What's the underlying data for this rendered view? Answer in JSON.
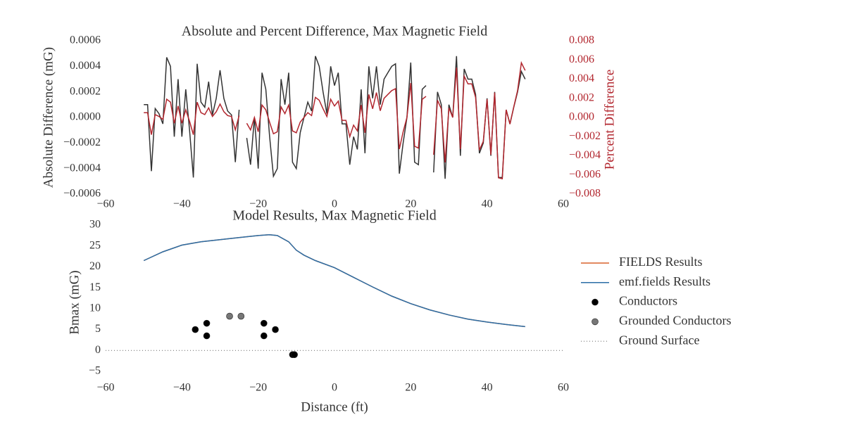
{
  "chart_data": [
    {
      "type": "line",
      "title": "Absolute and Percent Difference, Max Magnetic Field",
      "ylabel": "Absolute Difference (mG)",
      "y2label": "Percent Difference",
      "y2color": "#b2262e",
      "xlim": [
        -60,
        60
      ],
      "xticks": [
        {
          "value": -60,
          "label": "−60"
        },
        {
          "value": -40,
          "label": "−40"
        },
        {
          "value": -20,
          "label": "−20"
        },
        0,
        20,
        40,
        60
      ],
      "ylim": [
        -0.0006,
        0.0006
      ],
      "yticks": [
        {
          "value": -0.0006,
          "label": "−0.0006"
        },
        {
          "value": -0.0004,
          "label": "−0.0004"
        },
        {
          "value": -0.0002,
          "label": "−0.0002"
        },
        {
          "value": 0,
          "label": "0.0000"
        },
        {
          "value": 0.0002,
          "label": "0.0002"
        },
        {
          "value": 0.0004,
          "label": "0.0004"
        },
        {
          "value": 0.0006,
          "label": "0.0006"
        }
      ],
      "y2lim": [
        -0.008,
        0.008
      ],
      "y2ticks": [
        {
          "value": -0.008,
          "label": "−0.008"
        },
        {
          "value": -0.006,
          "label": "−0.006"
        },
        {
          "value": -0.004,
          "label": "−0.004"
        },
        {
          "value": -0.002,
          "label": "−0.002"
        },
        {
          "value": 0,
          "label": "0.000"
        },
        0.002,
        0.004,
        0.006,
        0.008
      ],
      "x": [
        -50,
        -49,
        -48,
        -47,
        -46,
        -45,
        -44,
        -43,
        -42,
        -41,
        -40,
        -39,
        -38,
        -37,
        -36,
        -35,
        -34,
        -33,
        -32,
        -31,
        -30,
        -29,
        -28,
        -27,
        -26,
        -25,
        -24,
        -23,
        -22,
        -21,
        -20,
        -19,
        -18,
        -17,
        -16,
        -15,
        -14,
        -13,
        -12,
        -11,
        -10,
        -9,
        -8,
        -7,
        -6,
        -5,
        -4,
        -3,
        -2,
        -1,
        0,
        1,
        2,
        3,
        4,
        5,
        6,
        7,
        8,
        9,
        10,
        11,
        12,
        13,
        14,
        15,
        16,
        17,
        18,
        19,
        20,
        21,
        22,
        23,
        24,
        25,
        26,
        27,
        28,
        29,
        30,
        31,
        32,
        33,
        34,
        35,
        36,
        37,
        38,
        39,
        40,
        41,
        42,
        43,
        44,
        45,
        46,
        47,
        48,
        49,
        50
      ],
      "series": [
        {
          "color": "#333333",
          "values": [
            0.0001,
            0.0001,
            -0.00042,
            7e-05,
            3e-05,
            -5e-05,
            0.00047,
            0.0004,
            -0.00015,
            0.0003,
            -0.00015,
            0.00022,
            -0.0001,
            -0.00047,
            0.00042,
            0.00012,
            8e-05,
            0.00028,
            2e-05,
            0.00015,
            0.00037,
            0.00015,
            5e-05,
            2e-05,
            -0.00035,
            6e-05,
            null,
            -0.00016,
            -0.00037,
            0,
            -0.0004,
            0.00035,
            0.00022,
            -0.00015,
            -0.00046,
            -0.0004,
            0.0003,
            0.0001,
            0.00035,
            -0.00035,
            -0.0004,
            -0.00012,
            0,
            0.00012,
            5e-05,
            0.00048,
            0.0004,
            0.0002,
            3e-05,
            0.0004,
            0.00025,
            0.00035,
            -5e-05,
            -5e-05,
            -0.00037,
            -0.00015,
            -0.00025,
            0.00022,
            -0.00028,
            0.0004,
            0.00015,
            0.0004,
            0.0001,
            0.0003,
            0.00035,
            0.0004,
            0.00042,
            -0.00044,
            -0.0002,
            0,
            0.00043,
            -0.00035,
            -0.00037,
            0.00022,
            0.00025,
            null,
            -0.00043,
            0.0002,
            0.0001,
            -0.00048,
            0.0001,
            0,
            0.00048,
            -0.0003,
            0.00038,
            0.0003,
            0.0003,
            0.00018,
            -0.00028,
            -0.0002,
            0.00015,
            -0.0003,
            0.0002,
            -0.00047,
            -0.00047,
            6e-05,
            -5e-05,
            8e-05,
            0.0002,
            0.00036,
            0.0003
          ]
        },
        {
          "color": "#b2262e",
          "axis": "y2",
          "values": [
            0.0005,
            0.0005,
            -0.0018,
            0.0003,
            0.0001,
            -0.0002,
            0.0019,
            0.0016,
            -0.0006,
            0.0012,
            -0.0006,
            0.0008,
            -0.0004,
            -0.0018,
            0.0016,
            0.0005,
            0.0003,
            0.001,
            0.0001,
            0.0006,
            0.0014,
            0.0006,
            0.0002,
            0.0001,
            -0.0013,
            0.0002,
            null,
            -0.0006,
            -0.0013,
            0,
            -0.0015,
            0.0013,
            0.0008,
            -0.0005,
            -0.0017,
            -0.0015,
            0.0011,
            0.0004,
            0.0013,
            -0.0014,
            -0.0016,
            -0.0005,
            0,
            0.0005,
            0.0002,
            0.0021,
            0.0018,
            0.0009,
            0.0001,
            0.0019,
            0.0012,
            0.0017,
            -0.0003,
            -0.0003,
            -0.002,
            -0.0008,
            -0.0014,
            0.0013,
            -0.0016,
            0.0024,
            0.0009,
            0.0026,
            0.0007,
            0.002,
            0.0024,
            0.0028,
            0.003,
            -0.0033,
            -0.0015,
            0,
            0.0036,
            -0.003,
            -0.0032,
            0.0019,
            0.0022,
            null,
            -0.0039,
            0.0018,
            0.0009,
            -0.0047,
            0.001,
            0,
            0.0052,
            -0.0033,
            0.0043,
            0.0035,
            0.0035,
            0.0021,
            -0.0034,
            -0.0025,
            0.0019,
            -0.0039,
            0.0026,
            -0.0063,
            -0.0064,
            0.0008,
            -0.0007,
            0.0011,
            0.0028,
            0.0057,
            0.0049
          ]
        }
      ]
    },
    {
      "type": "line",
      "title": "Model Results, Max Magnetic Field",
      "ylabel": "Bmax (mG)",
      "xlabel": "Distance (ft)",
      "xlim": [
        -60,
        60
      ],
      "xticks": [
        {
          "value": -60,
          "label": "−60"
        },
        {
          "value": -40,
          "label": "−40"
        },
        {
          "value": -20,
          "label": "−20"
        },
        0,
        20,
        40,
        60
      ],
      "ylim": [
        -5,
        30
      ],
      "yticks": [
        {
          "value": -5,
          "label": "−5"
        },
        0,
        5,
        10,
        15,
        20,
        25,
        30
      ],
      "series": [
        {
          "name": "FIELDS Results",
          "mark": "line",
          "color": "#d9622b",
          "x": [
            -50,
            -45,
            -40,
            -35,
            -30,
            -25,
            -20,
            -17,
            -15,
            -12,
            -10,
            -8,
            -5,
            0,
            5,
            10,
            15,
            20,
            25,
            30,
            35,
            40,
            45,
            50
          ],
          "values": [
            21.5,
            23.6,
            25.2,
            26.0,
            26.5,
            27.0,
            27.5,
            27.7,
            27.5,
            26.0,
            24.0,
            22.8,
            21.5,
            19.8,
            17.5,
            15.2,
            13.0,
            11.2,
            9.7,
            8.5,
            7.5,
            6.8,
            6.2,
            5.7
          ]
        },
        {
          "name": "emf.fields Results",
          "mark": "line",
          "color": "#2b6ea6",
          "x": [
            -50,
            -45,
            -40,
            -35,
            -30,
            -25,
            -20,
            -17,
            -15,
            -12,
            -10,
            -8,
            -5,
            0,
            5,
            10,
            15,
            20,
            25,
            30,
            35,
            40,
            45,
            50
          ],
          "values": [
            21.5,
            23.6,
            25.2,
            26.0,
            26.5,
            27.0,
            27.5,
            27.7,
            27.5,
            26.0,
            24.0,
            22.8,
            21.5,
            19.8,
            17.5,
            15.2,
            13.0,
            11.2,
            9.7,
            8.5,
            7.5,
            6.8,
            6.2,
            5.7
          ]
        },
        {
          "name": "Conductors",
          "mark": "marker",
          "color": "#000000",
          "x": [
            -36.5,
            -33.5,
            -33.5,
            -18.5,
            -18.5,
            -15.5,
            -11,
            -10.5
          ],
          "values": [
            5,
            6.5,
            3.5,
            6.5,
            3.5,
            5,
            -1,
            -1
          ]
        },
        {
          "name": "Grounded Conductors",
          "mark": "marker",
          "color": "#777777",
          "x": [
            -27.5,
            -24.5
          ],
          "values": [
            8.2,
            8.2
          ]
        },
        {
          "name": "Ground Surface",
          "mark": "dotted",
          "color": "#777777",
          "x": [
            -60,
            60
          ],
          "values": [
            0,
            0
          ]
        }
      ]
    }
  ]
}
